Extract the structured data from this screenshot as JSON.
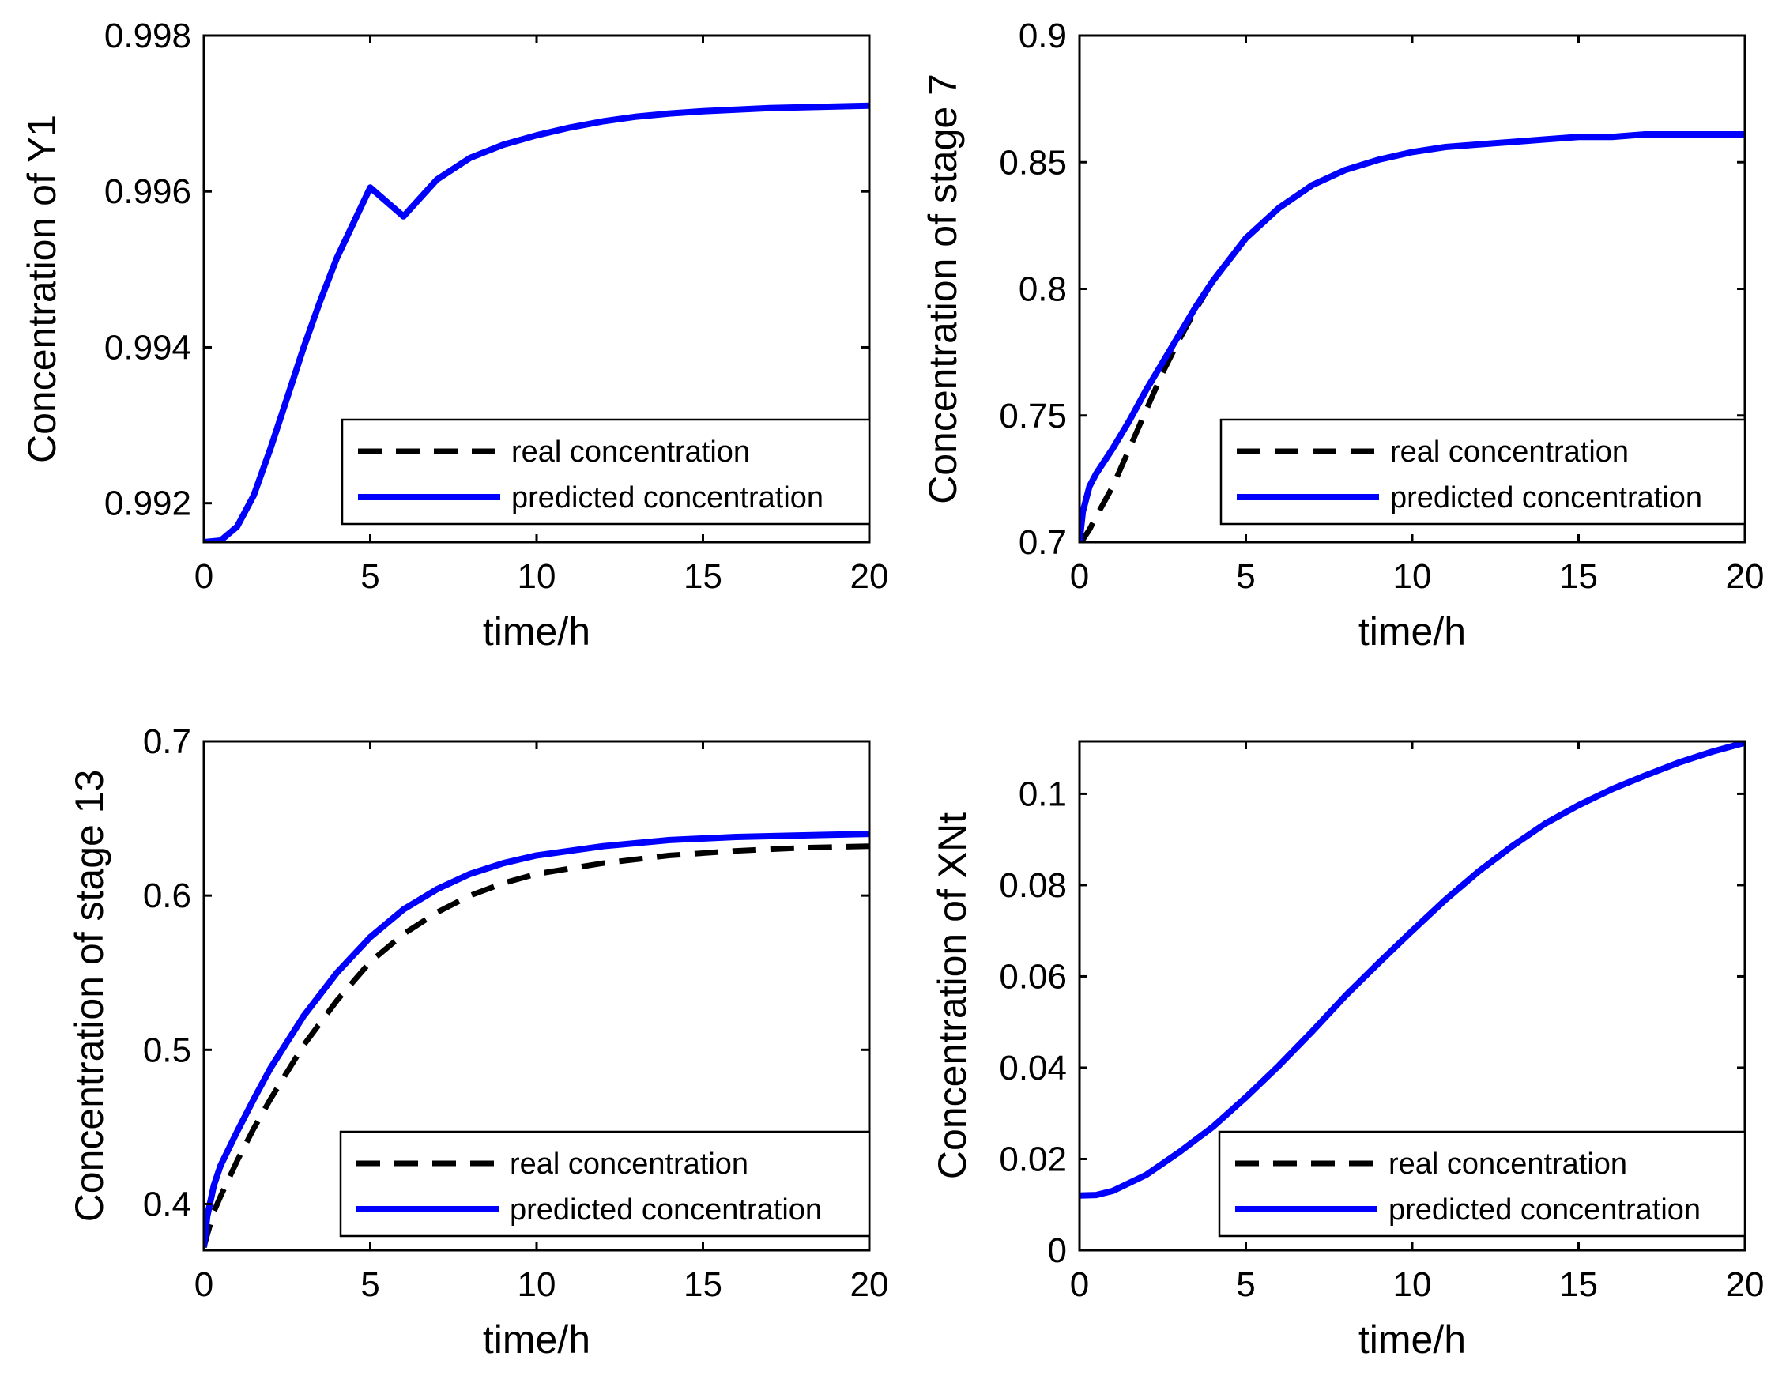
{
  "colors": {
    "real": "#000000",
    "predicted": "#0000ff",
    "axis": "#000000",
    "background": "#ffffff"
  },
  "chart_data": [
    {
      "id": "y1",
      "type": "line",
      "xlabel": "time/h",
      "ylabel": "Concentration of Y1",
      "xlim": [
        0,
        20
      ],
      "ylim": [
        0.9915,
        0.998
      ],
      "xticks": [
        0,
        5,
        10,
        15,
        20
      ],
      "xtick_labels": [
        "0",
        "5",
        "10",
        "15",
        "20"
      ],
      "yticks": [
        0.992,
        0.994,
        0.996,
        0.998
      ],
      "ytick_labels": [
        "0.992",
        "0.994",
        "0.996",
        "0.998"
      ],
      "legend": {
        "position": "bottom-right",
        "entries": [
          "real concentration",
          "predicted concentration"
        ]
      },
      "x": [
        0,
        0.5,
        1,
        1.5,
        2,
        2.5,
        3,
        3.5,
        4,
        5,
        6,
        7,
        8,
        9,
        10,
        11,
        12,
        13,
        14,
        15,
        16,
        17,
        18,
        19,
        20
      ],
      "series": [
        {
          "name": "real concentration",
          "style": "dashed",
          "values": [
            0.9915,
            0.99152,
            0.9917,
            0.9921,
            0.9927,
            0.99335,
            0.994,
            0.9946,
            0.99515,
            0.99605,
            0.99568,
            0.99615,
            0.99643,
            0.9966,
            0.99672,
            0.99682,
            0.9969,
            0.99696,
            0.997,
            0.99703,
            0.99705,
            0.99707,
            0.99708,
            0.99709,
            0.9971
          ]
        },
        {
          "name": "predicted concentration",
          "style": "solid",
          "values": [
            0.9915,
            0.99152,
            0.9917,
            0.9921,
            0.9927,
            0.99335,
            0.994,
            0.9946,
            0.99515,
            0.99605,
            0.99568,
            0.99615,
            0.99643,
            0.9966,
            0.99672,
            0.99682,
            0.9969,
            0.99696,
            0.997,
            0.99703,
            0.99705,
            0.99707,
            0.99708,
            0.99709,
            0.9971
          ]
        }
      ]
    },
    {
      "id": "stage7",
      "type": "line",
      "xlabel": "time/h",
      "ylabel": "Concentration of stage 7",
      "xlim": [
        0,
        20
      ],
      "ylim": [
        0.7,
        0.9
      ],
      "xticks": [
        0,
        5,
        10,
        15,
        20
      ],
      "xtick_labels": [
        "0",
        "5",
        "10",
        "15",
        "20"
      ],
      "yticks": [
        0.7,
        0.75,
        0.8,
        0.85,
        0.9
      ],
      "ytick_labels": [
        "0.7",
        "0.75",
        "0.8",
        "0.85",
        "0.9"
      ],
      "legend": {
        "position": "bottom-right",
        "entries": [
          "real concentration",
          "predicted concentration"
        ]
      },
      "x": [
        0,
        0.1,
        0.3,
        0.5,
        1,
        1.5,
        2,
        2.5,
        3,
        3.5,
        4,
        5,
        6,
        7,
        8,
        9,
        10,
        11,
        12,
        13,
        14,
        15,
        16,
        17,
        18,
        19,
        20
      ],
      "series": [
        {
          "name": "real concentration",
          "style": "dashed",
          "values": [
            0.7,
            0.701,
            0.705,
            0.71,
            0.722,
            0.737,
            0.752,
            0.767,
            0.78,
            0.792,
            0.803,
            0.82,
            0.832,
            0.841,
            0.847,
            0.851,
            0.854,
            0.856,
            0.857,
            0.858,
            0.859,
            0.86,
            0.86,
            0.861,
            0.861,
            0.861,
            0.861
          ]
        },
        {
          "name": "predicted concentration",
          "style": "solid",
          "values": [
            0.7,
            0.712,
            0.722,
            0.727,
            0.737,
            0.748,
            0.76,
            0.771,
            0.782,
            0.793,
            0.803,
            0.82,
            0.832,
            0.841,
            0.847,
            0.851,
            0.854,
            0.856,
            0.857,
            0.858,
            0.859,
            0.86,
            0.86,
            0.861,
            0.861,
            0.861,
            0.861
          ]
        }
      ]
    },
    {
      "id": "stage13",
      "type": "line",
      "xlabel": "time/h",
      "ylabel": "Concentration of stage 13",
      "xlim": [
        0,
        20
      ],
      "ylim": [
        0.37,
        0.7
      ],
      "xticks": [
        0,
        5,
        10,
        15,
        20
      ],
      "xtick_labels": [
        "0",
        "5",
        "10",
        "15",
        "20"
      ],
      "yticks": [
        0.4,
        0.5,
        0.6,
        0.7
      ],
      "ytick_labels": [
        "0.4",
        "0.5",
        "0.6",
        "0.7"
      ],
      "legend": {
        "position": "bottom-right",
        "entries": [
          "real concentration",
          "predicted concentration"
        ]
      },
      "x": [
        0,
        0.1,
        0.3,
        0.5,
        1,
        1.5,
        2,
        3,
        4,
        5,
        6,
        7,
        8,
        9,
        10,
        12,
        14,
        16,
        18,
        20
      ],
      "series": [
        {
          "name": "real concentration",
          "style": "dashed",
          "values": [
            0.372,
            0.38,
            0.395,
            0.405,
            0.428,
            0.449,
            0.468,
            0.503,
            0.532,
            0.557,
            0.575,
            0.589,
            0.6,
            0.608,
            0.614,
            0.621,
            0.626,
            0.629,
            0.631,
            0.632
          ]
        },
        {
          "name": "predicted concentration",
          "style": "solid",
          "values": [
            0.372,
            0.392,
            0.412,
            0.425,
            0.447,
            0.468,
            0.488,
            0.522,
            0.55,
            0.573,
            0.591,
            0.604,
            0.614,
            0.621,
            0.626,
            0.632,
            0.636,
            0.638,
            0.639,
            0.64
          ]
        }
      ]
    },
    {
      "id": "xnt",
      "type": "line",
      "xlabel": "time/h",
      "ylabel": "Concentration of XNt",
      "xlim": [
        0,
        20
      ],
      "ylim": [
        0,
        0.1115
      ],
      "xticks": [
        0,
        5,
        10,
        15,
        20
      ],
      "xtick_labels": [
        "0",
        "5",
        "10",
        "15",
        "20"
      ],
      "yticks": [
        0,
        0.02,
        0.04,
        0.06,
        0.08,
        0.1
      ],
      "ytick_labels": [
        "0",
        "0.02",
        "0.04",
        "0.06",
        "0.08",
        "0.1"
      ],
      "legend": {
        "position": "bottom-right",
        "entries": [
          "real concentration",
          "predicted concentration"
        ]
      },
      "x": [
        0,
        0.5,
        1,
        2,
        3,
        4,
        5,
        6,
        7,
        8,
        9,
        10,
        11,
        12,
        13,
        14,
        15,
        16,
        17,
        18,
        19,
        20
      ],
      "series": [
        {
          "name": "real concentration",
          "style": "dashed",
          "values": [
            0.012,
            0.0121,
            0.013,
            0.0165,
            0.0215,
            0.027,
            0.0335,
            0.0405,
            0.048,
            0.0558,
            0.063,
            0.07,
            0.0768,
            0.083,
            0.0885,
            0.0935,
            0.0975,
            0.101,
            0.104,
            0.1068,
            0.1092,
            0.1112
          ]
        },
        {
          "name": "predicted concentration",
          "style": "solid",
          "values": [
            0.012,
            0.0121,
            0.013,
            0.0165,
            0.0215,
            0.027,
            0.0335,
            0.0405,
            0.048,
            0.0558,
            0.063,
            0.07,
            0.0768,
            0.083,
            0.0885,
            0.0935,
            0.0975,
            0.101,
            0.104,
            0.1068,
            0.1092,
            0.1112
          ]
        }
      ]
    }
  ]
}
